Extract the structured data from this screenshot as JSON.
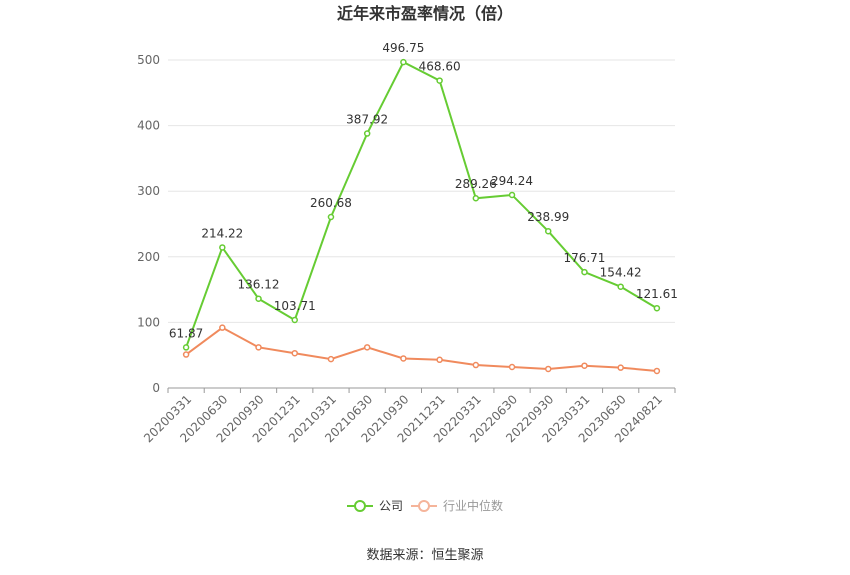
{
  "chart_data": {
    "type": "line",
    "title": "近年来市盈率情况（倍）",
    "categories": [
      "20200331",
      "20200630",
      "20200930",
      "20201231",
      "20210331",
      "20210630",
      "20210930",
      "20211231",
      "20220331",
      "20220630",
      "20220930",
      "20230331",
      "20230630",
      "20240821"
    ],
    "series": [
      {
        "name": "公司",
        "color": "#66cc33",
        "values": [
          61.87,
          214.22,
          136.12,
          103.71,
          260.68,
          387.92,
          496.75,
          468.6,
          289.26,
          294.24,
          238.99,
          176.71,
          154.42,
          121.61
        ],
        "labels": [
          "61.87",
          "214.22",
          "136.12",
          "103.71",
          "260.68",
          "387.92",
          "496.75",
          "468.60",
          "289.26",
          "294.24",
          "238.99",
          "176.71",
          "154.42",
          "121.61"
        ]
      },
      {
        "name": "行业中位数",
        "color": "#f08a5d",
        "values": [
          51,
          92,
          62,
          53,
          44,
          62,
          45,
          43,
          35,
          32,
          29,
          34,
          31,
          26
        ]
      }
    ],
    "ylim": [
      0,
      500
    ],
    "yticks": [
      0,
      100,
      200,
      300,
      400,
      500
    ],
    "grid": true,
    "legend": "bottom",
    "source": "数据来源：恒生聚源"
  }
}
